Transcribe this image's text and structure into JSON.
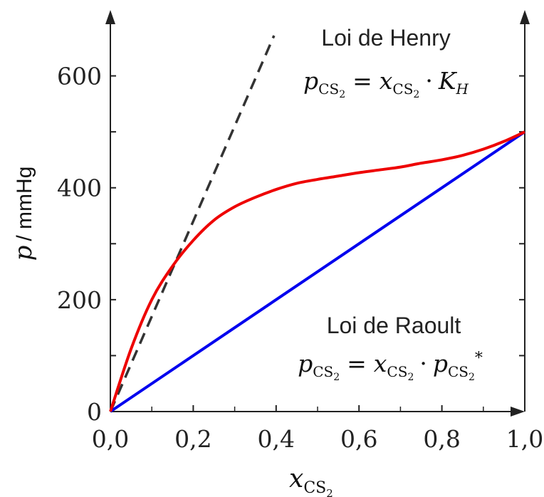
{
  "chart_data": {
    "type": "line",
    "xlabel": "x",
    "xlabel_sub": "CS",
    "xlabel_sub2": "2",
    "ylabel_var": "p",
    "ylabel_unit": "/ mmHg",
    "xlim": [
      0,
      1
    ],
    "ylim": [
      0,
      700
    ],
    "x_ticks": [
      0,
      0.2,
      0.4,
      0.6,
      0.8,
      1.0
    ],
    "x_tick_labels": [
      "0,0",
      "0,2",
      "0,4",
      "0,6",
      "0,8",
      "1,0"
    ],
    "y_ticks": [
      0,
      200,
      400,
      600
    ],
    "y_tick_labels": [
      "0",
      "200",
      "400",
      "600"
    ],
    "series": [
      {
        "key": "raoult",
        "style": "solid",
        "color": "#0000ee",
        "x": [
          0,
          1
        ],
        "y": [
          0,
          500
        ]
      },
      {
        "key": "real",
        "style": "solid",
        "color": "#ee0000",
        "x": [
          0,
          0.05,
          0.1,
          0.15,
          0.2,
          0.25,
          0.3,
          0.35,
          0.4,
          0.45,
          0.5,
          0.55,
          0.6,
          0.65,
          0.7,
          0.75,
          0.8,
          0.85,
          0.9,
          0.95,
          1.0
        ],
        "y": [
          0,
          112,
          200,
          260,
          306,
          342,
          366,
          383,
          397,
          408,
          415,
          421,
          427,
          432,
          437,
          444,
          450,
          458,
          469,
          483,
          500
        ]
      },
      {
        "key": "henry",
        "style": "dashed",
        "color": "#333333",
        "x": [
          0,
          0.395
        ],
        "y": [
          0,
          672
        ]
      }
    ],
    "annotations": {
      "henry": {
        "title": "Loi de Henry",
        "p": "p",
        "x": "x",
        "sub": "CS",
        "sub2": "2",
        "eq": "=",
        "dot": "·",
        "k": "K",
        "k_sub": "H"
      },
      "raoult": {
        "title": "Loi de Raoult",
        "p": "p",
        "x": "x",
        "sub": "CS",
        "sub2": "2",
        "eq": "=",
        "dot": "·",
        "star": "*"
      }
    }
  }
}
